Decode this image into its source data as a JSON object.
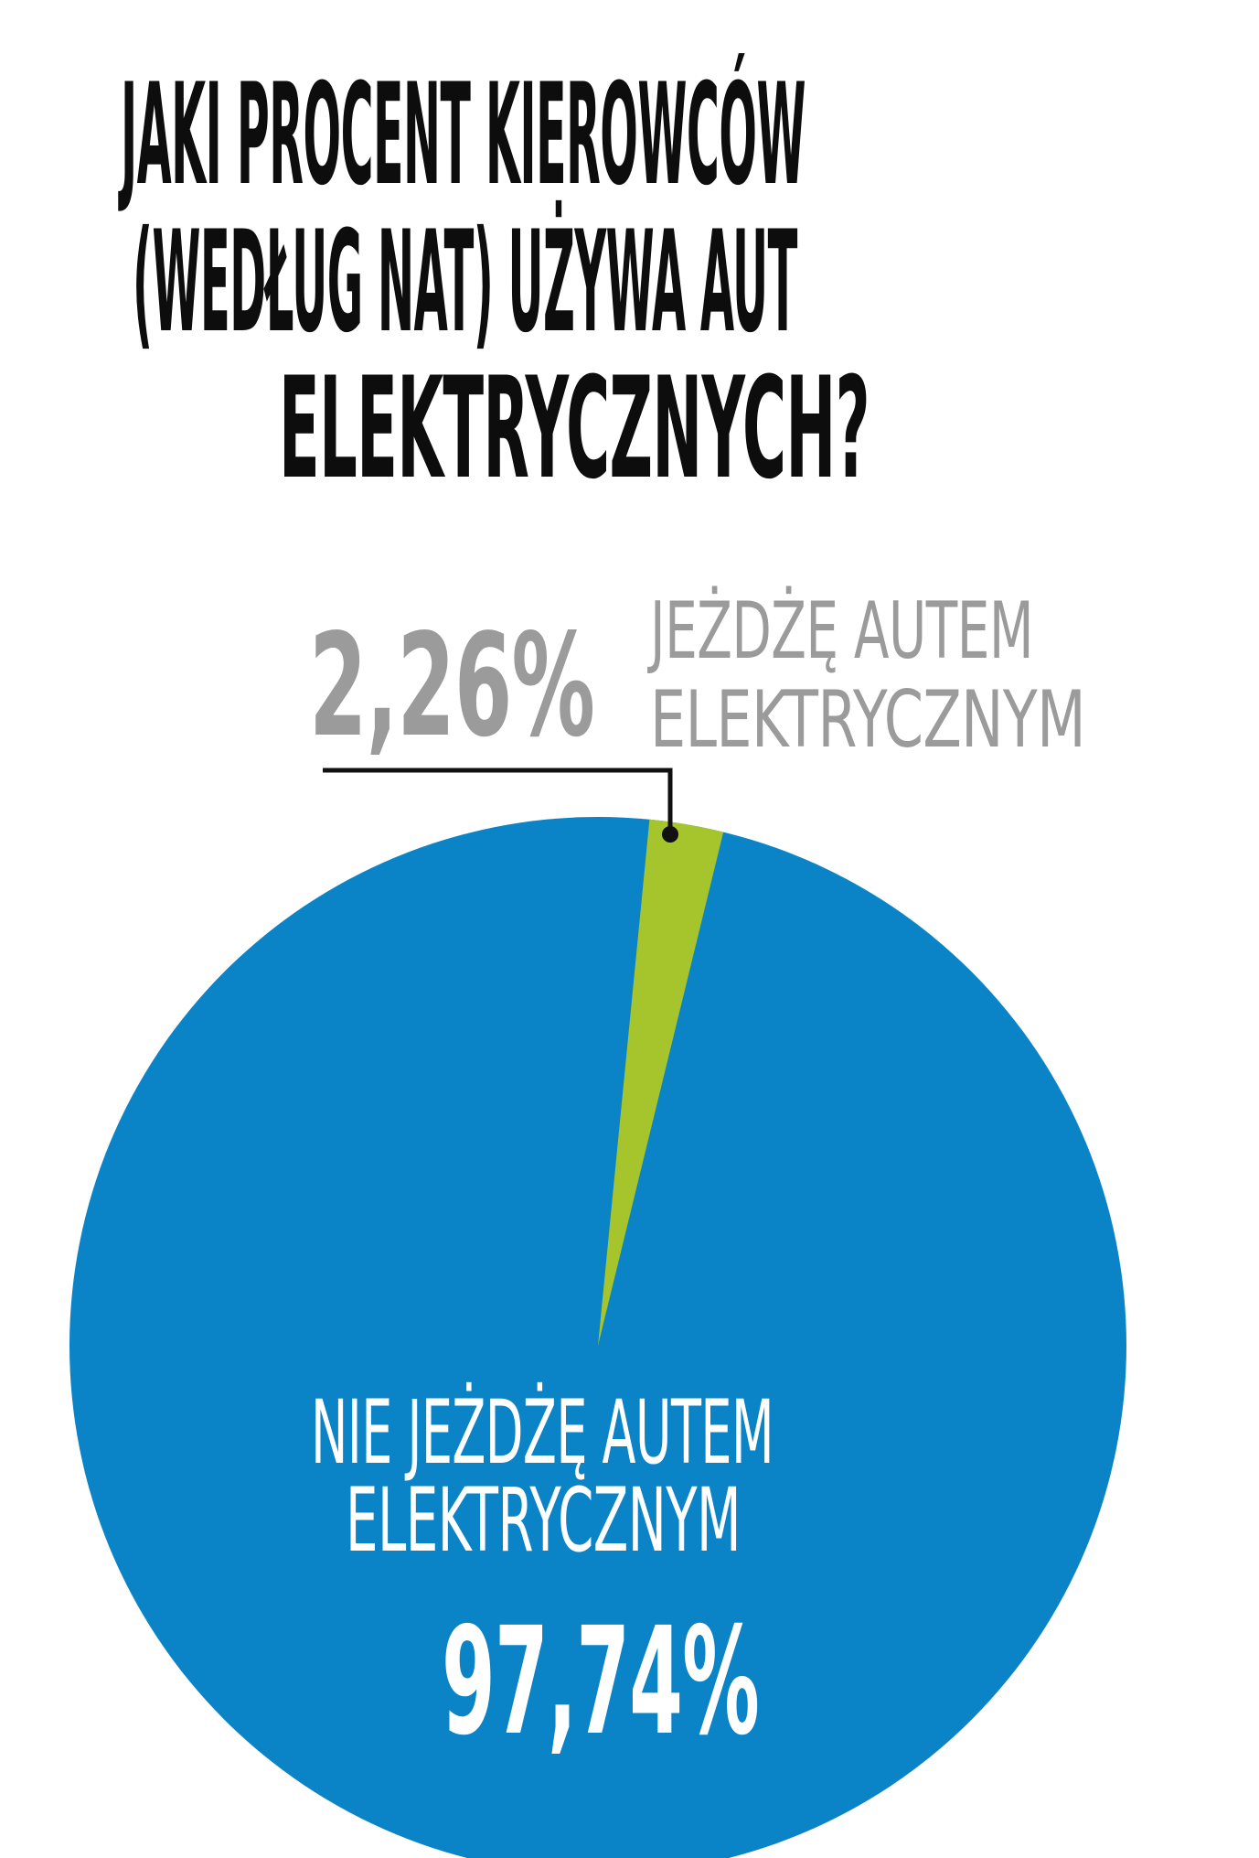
{
  "title": {
    "line1": "JAKI PROCENT KIEROWCÓW",
    "line2": "(WEDŁUG NAT) UŻYWA AUT",
    "line3": "ELEKTRYCZNYCH?"
  },
  "annotation_green": {
    "value_label": "2,26%",
    "label_line1": "JEŻDŻĘ AUTEM",
    "label_line2": "ELEKTRYCZNYM"
  },
  "annotation_blue": {
    "label_line1": "NIE JEŻDŻĘ AUTEM",
    "label_line2": "ELEKTRYCZNYM",
    "value_label": "97,74%"
  },
  "chart_data": {
    "type": "pie",
    "title": "JAKI PROCENT KIEROWCÓW (WEDŁUG NAT) UŻYWA AUT ELEKTRYCZNYCH?",
    "slices": [
      {
        "label": "JEŻDŻĘ AUTEM ELEKTRYCZNYM",
        "value": 2.26,
        "value_label": "2,26%",
        "color": "#a6c52d"
      },
      {
        "label": "NIE JEŻDŻĘ AUTEM ELEKTRYCZNYM",
        "value": 97.74,
        "value_label": "97,74%",
        "color": "#0a84c6"
      }
    ],
    "colors": {
      "accent_green": "#a6c52d",
      "accent_blue": "#0a84c6",
      "callout_black": "#111111",
      "muted_gray": "#9b9b9b"
    },
    "layout_hints": {
      "start_angle_deg_from_north": 5.6,
      "clockwise": true,
      "legend": "none",
      "small_slice_label_position": "outside-top",
      "large_slice_label_position": "inside",
      "pie_clipped_at_bottom": true
    }
  }
}
